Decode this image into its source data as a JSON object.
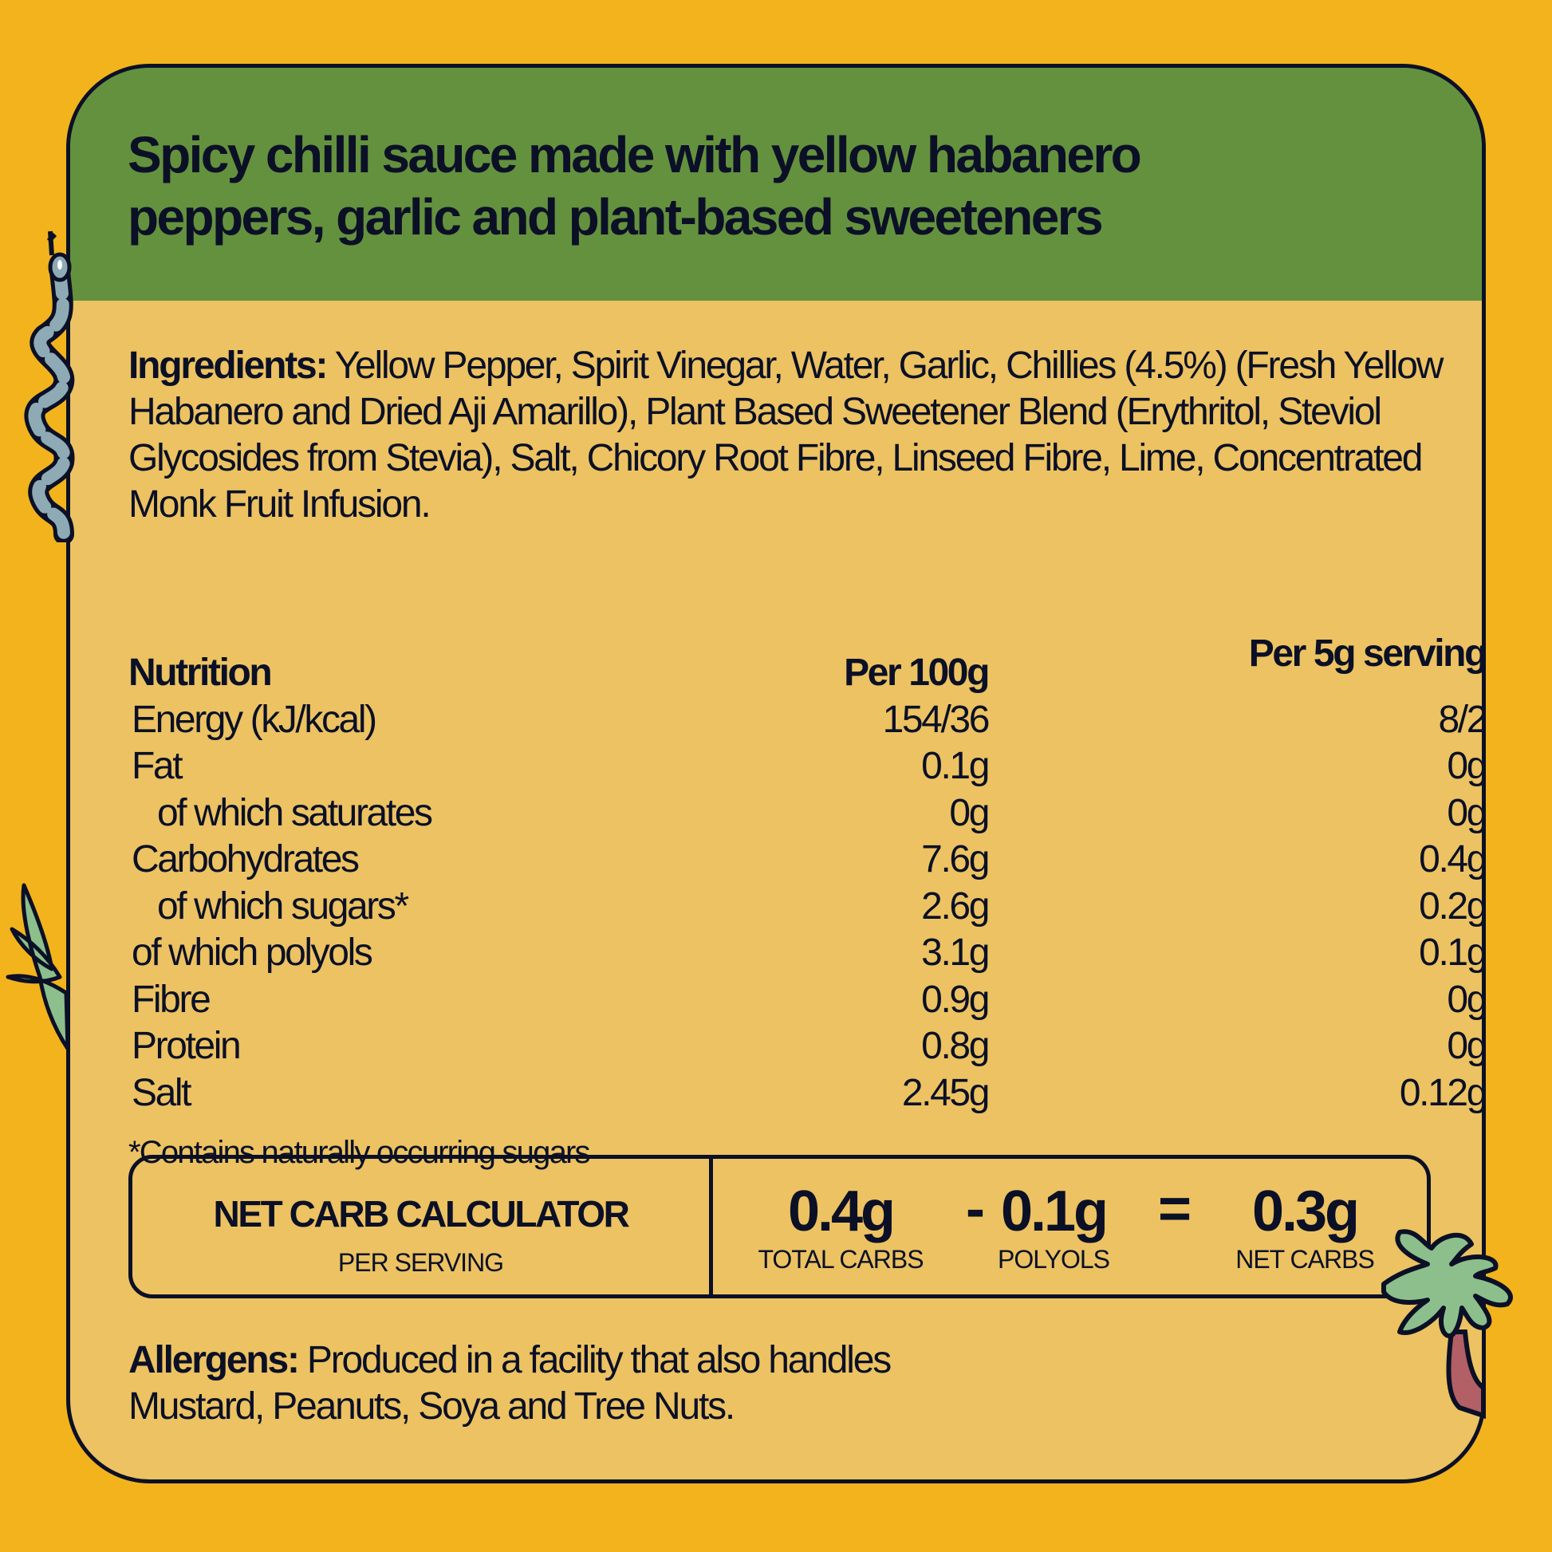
{
  "title": [
    "Spicy chilli sauce made with yellow habanero",
    "peppers, garlic and plant-based sweeteners"
  ],
  "ingredients": {
    "label": "Ingredients:",
    "text": "Yellow Pepper, Spirit Vinegar, Water, Garlic, Chillies (4.5%) (Fresh Yellow Habanero and Dried Aji Amarillo), Plant Based Sweetener Blend (Erythritol, Steviol Glycosides from Stevia), Salt, Chicory Root Fibre, Linseed Fibre, Lime, Concentrated Monk Fruit Infusion."
  },
  "nutrition": {
    "headers": [
      "Nutrition",
      "Per 100g",
      "Per 5g serving"
    ],
    "rows": [
      {
        "label": "Energy (kJ/kcal)",
        "per100": "154/36",
        "perServing": "8/2"
      },
      {
        "label": "Fat",
        "per100": "0.1g",
        "perServing": "0g"
      },
      {
        "label": "of which saturates",
        "per100": "0g",
        "perServing": "0g"
      },
      {
        "label": "Carbohydrates",
        "per100": "7.6g",
        "perServing": "0.4g"
      },
      {
        "label": "of which sugars*",
        "per100": "2.6g",
        "perServing": "0.2g"
      },
      {
        "label": "of which polyols",
        "per100": "3.1g",
        "perServing": "0.1g"
      },
      {
        "label": "Fibre",
        "per100": "0.9g",
        "perServing": "0g"
      },
      {
        "label": "Protein",
        "per100": "0.8g",
        "perServing": "0g"
      },
      {
        "label": "Salt",
        "per100": "2.45g",
        "perServing": "0.12g"
      }
    ],
    "footnote": "*Contains naturally occurring sugars"
  },
  "calculator": {
    "title": "NET CARB CALCULATOR",
    "subtitle": "PER SERVING",
    "total": {
      "value": "0.4g",
      "label": "TOTAL CARBS"
    },
    "minus": "-",
    "polyols": {
      "value": "0.1g",
      "label": "POLYOLS"
    },
    "equals": "=",
    "net": {
      "value": "0.3g",
      "label": "NET CARBS"
    }
  },
  "allergens": {
    "label": "Allergens:",
    "line1": "Produced in a facility that also handles",
    "line2": "Mustard, Peanuts, Soya and Tree Nuts."
  },
  "colors": {
    "background": "#f2b31c",
    "card": "#ecc262",
    "header": "#64913e",
    "ink": "#0b1026"
  },
  "decorations": [
    "snake-icon",
    "plant-icon",
    "palm-tree-icon"
  ]
}
